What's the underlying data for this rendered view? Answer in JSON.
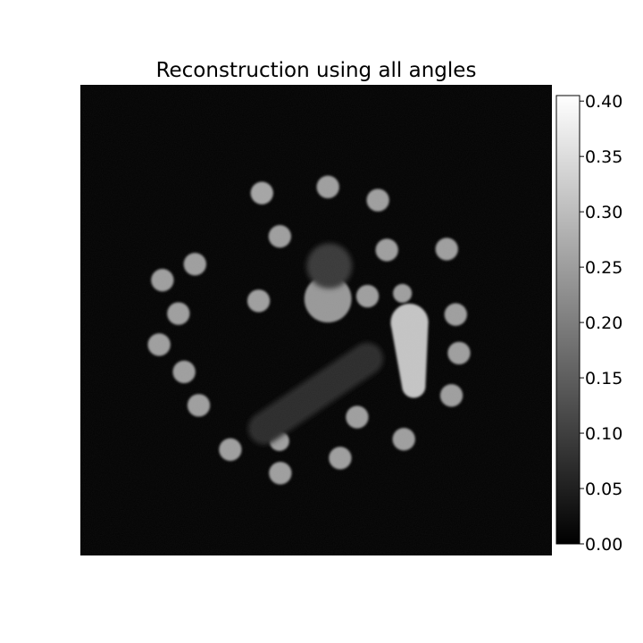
{
  "chart_data": {
    "type": "heatmap",
    "title": "Reconstruction using all angles",
    "colormap": "gray",
    "colorbar": {
      "vmin": 0.0,
      "vmax": 0.405,
      "ticks": [
        0.0,
        0.05,
        0.1,
        0.15,
        0.2,
        0.25,
        0.3,
        0.35,
        0.4
      ],
      "tick_labels": [
        "0.00",
        "0.05",
        "0.10",
        "0.15",
        "0.20",
        "0.25",
        "0.30",
        "0.35",
        "0.40"
      ]
    },
    "background_value": 0.0,
    "regions": [
      {
        "shape": "circle",
        "cx": 0.385,
        "cy": 0.23,
        "r": 0.024,
        "value": 0.26
      },
      {
        "shape": "circle",
        "cx": 0.525,
        "cy": 0.217,
        "r": 0.024,
        "value": 0.25
      },
      {
        "shape": "circle",
        "cx": 0.631,
        "cy": 0.245,
        "r": 0.024,
        "value": 0.25
      },
      {
        "shape": "circle",
        "cx": 0.423,
        "cy": 0.322,
        "r": 0.024,
        "value": 0.25
      },
      {
        "shape": "circle",
        "cx": 0.65,
        "cy": 0.351,
        "r": 0.024,
        "value": 0.25
      },
      {
        "shape": "circle",
        "cx": 0.777,
        "cy": 0.349,
        "r": 0.024,
        "value": 0.25
      },
      {
        "shape": "circle",
        "cx": 0.243,
        "cy": 0.381,
        "r": 0.024,
        "value": 0.25
      },
      {
        "shape": "circle",
        "cx": 0.174,
        "cy": 0.415,
        "r": 0.024,
        "value": 0.25
      },
      {
        "shape": "circle",
        "cx": 0.378,
        "cy": 0.459,
        "r": 0.024,
        "value": 0.25
      },
      {
        "shape": "circle",
        "cx": 0.609,
        "cy": 0.449,
        "r": 0.024,
        "value": 0.25
      },
      {
        "shape": "circle",
        "cx": 0.683,
        "cy": 0.443,
        "r": 0.02,
        "value": 0.25
      },
      {
        "shape": "circle",
        "cx": 0.796,
        "cy": 0.488,
        "r": 0.024,
        "value": 0.25
      },
      {
        "shape": "circle",
        "cx": 0.208,
        "cy": 0.486,
        "r": 0.024,
        "value": 0.25
      },
      {
        "shape": "circle",
        "cx": 0.167,
        "cy": 0.552,
        "r": 0.024,
        "value": 0.25
      },
      {
        "shape": "circle",
        "cx": 0.803,
        "cy": 0.57,
        "r": 0.024,
        "value": 0.25
      },
      {
        "shape": "circle",
        "cx": 0.22,
        "cy": 0.61,
        "r": 0.024,
        "value": 0.25
      },
      {
        "shape": "circle",
        "cx": 0.787,
        "cy": 0.66,
        "r": 0.024,
        "value": 0.25
      },
      {
        "shape": "circle",
        "cx": 0.251,
        "cy": 0.681,
        "r": 0.024,
        "value": 0.25
      },
      {
        "shape": "circle",
        "cx": 0.587,
        "cy": 0.706,
        "r": 0.024,
        "value": 0.25
      },
      {
        "shape": "circle",
        "cx": 0.686,
        "cy": 0.753,
        "r": 0.024,
        "value": 0.25
      },
      {
        "shape": "circle",
        "cx": 0.422,
        "cy": 0.757,
        "r": 0.021,
        "value": 0.25
      },
      {
        "shape": "circle",
        "cx": 0.318,
        "cy": 0.775,
        "r": 0.024,
        "value": 0.25
      },
      {
        "shape": "circle",
        "cx": 0.551,
        "cy": 0.793,
        "r": 0.024,
        "value": 0.25
      },
      {
        "shape": "circle",
        "cx": 0.424,
        "cy": 0.825,
        "r": 0.024,
        "value": 0.25
      },
      {
        "shape": "circle",
        "cx": 0.525,
        "cy": 0.455,
        "r": 0.05,
        "value": 0.24
      },
      {
        "shape": "circle",
        "cx": 0.528,
        "cy": 0.385,
        "r": 0.048,
        "value": 0.09
      },
      {
        "shape": "capsule",
        "x1": 0.698,
        "y1": 0.505,
        "x2": 0.707,
        "y2": 0.64,
        "r1": 0.04,
        "r2": 0.025,
        "value": 0.31
      },
      {
        "shape": "capsule",
        "x1": 0.39,
        "y1": 0.73,
        "x2": 0.608,
        "y2": 0.582,
        "r1": 0.034,
        "r2": 0.034,
        "value": 0.07
      }
    ]
  }
}
